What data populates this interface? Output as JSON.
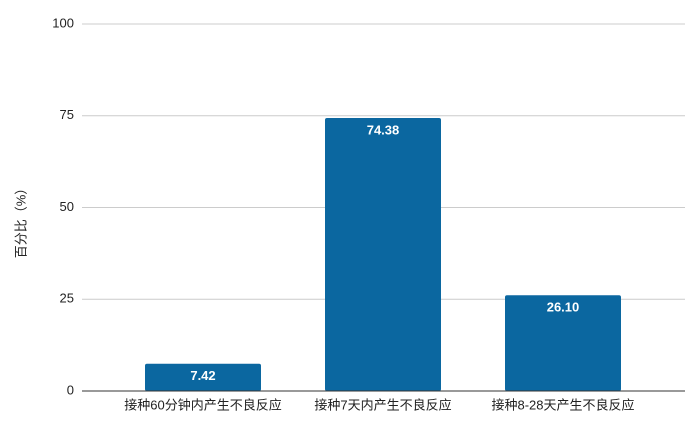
{
  "chart_data": {
    "type": "bar",
    "y_label": "百分比（%）",
    "categories": [
      "接种60分钟内产生不良反应",
      "接种7天内产生不良反应",
      "接种8-28天产生不良反应"
    ],
    "values": [
      7.42,
      74.38,
      26.1
    ],
    "value_labels": [
      "7.42",
      "74.38",
      "26.10"
    ],
    "color": "#0b67a0",
    "ylim": [
      0,
      100
    ],
    "yticks": [
      0,
      25,
      50,
      75,
      100
    ],
    "grid": true
  }
}
